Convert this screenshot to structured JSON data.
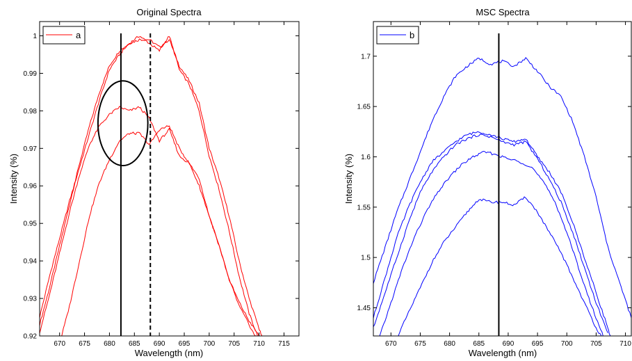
{
  "chart_data": [
    {
      "type": "line",
      "title": "Original Spectra",
      "xlabel": "Wavelength (nm)",
      "ylabel": "Intensity (%)",
      "xlim": [
        666,
        718
      ],
      "ylim": [
        0.92,
        1.0038
      ],
      "xticks": [
        "670",
        "675",
        "680",
        "685",
        "690",
        "695",
        "700",
        "705",
        "710",
        "715"
      ],
      "yticks": [
        "0.92",
        "0.93",
        "0.94",
        "0.95",
        "0.96",
        "0.97",
        "0.98",
        "0.99",
        "1"
      ],
      "legend": {
        "position": "top-left",
        "entries": [
          {
            "label": "a",
            "color": "#ff0000"
          }
        ]
      },
      "grid": false,
      "line_color": "#ff0000",
      "series": [
        {
          "x": [
            666,
            668,
            670,
            672,
            674,
            676,
            678,
            680,
            682,
            684,
            686,
            688,
            690,
            692,
            694,
            696,
            698,
            700,
            702,
            704,
            706,
            708,
            710,
            711
          ],
          "values": [
            0.923,
            0.933,
            0.944,
            0.955,
            0.966,
            0.976,
            0.985,
            0.992,
            0.996,
            0.998,
            0.999,
            0.999,
            0.997,
            0.999,
            0.992,
            0.988,
            0.982,
            0.97,
            0.962,
            0.952,
            0.94,
            0.93,
            0.922,
            0.918
          ]
        },
        {
          "x": [
            666,
            668,
            670,
            672,
            674,
            676,
            678,
            680,
            682,
            684,
            686,
            688,
            690,
            692,
            694,
            696,
            698,
            700,
            702,
            704,
            706,
            708,
            710,
            711
          ],
          "values": [
            0.925,
            0.936,
            0.946,
            0.956,
            0.965,
            0.974,
            0.983,
            0.991,
            0.995,
            0.998,
            1.0,
            0.998,
            0.996,
            1.0,
            0.991,
            0.987,
            0.98,
            0.968,
            0.959,
            0.948,
            0.936,
            0.926,
            0.919,
            0.915
          ]
        },
        {
          "x": [
            666,
            668,
            670,
            672,
            674,
            676,
            678,
            680,
            682,
            684,
            686,
            688,
            690,
            692,
            694,
            696,
            698,
            700,
            702,
            704,
            706,
            708,
            710,
            711
          ],
          "values": [
            0.921,
            0.931,
            0.942,
            0.953,
            0.963,
            0.971,
            0.976,
            0.979,
            0.981,
            0.98,
            0.981,
            0.978,
            0.972,
            0.975,
            0.968,
            0.966,
            0.962,
            0.952,
            0.944,
            0.935,
            0.929,
            0.924,
            0.92,
            0.918
          ]
        },
        {
          "x": [
            670,
            672,
            674,
            676,
            678,
            680,
            682,
            684,
            686,
            688,
            690,
            692,
            694,
            696,
            698,
            700,
            702,
            704,
            706,
            708,
            710
          ],
          "values": [
            0.918,
            0.928,
            0.94,
            0.952,
            0.961,
            0.967,
            0.972,
            0.974,
            0.974,
            0.971,
            0.975,
            0.976,
            0.97,
            0.966,
            0.96,
            0.952,
            0.944,
            0.935,
            0.928,
            0.923,
            0.918
          ]
        }
      ],
      "annotations": [
        {
          "type": "vertical-line",
          "x": 682.3,
          "style": "solid"
        },
        {
          "type": "vertical-line",
          "x": 688.2,
          "style": "dashed"
        },
        {
          "type": "circle",
          "cx": 682.7,
          "cy": 0.9767,
          "rx": 5,
          "ry": 0.0113
        }
      ]
    },
    {
      "type": "line",
      "title": "MSC Spectra",
      "xlabel": "Wavelength (nm)",
      "ylabel": "Intensity (%)",
      "xlim": [
        667,
        711
      ],
      "ylim": [
        1.422,
        1.7344
      ],
      "xticks": [
        "670",
        "675",
        "680",
        "685",
        "690",
        "695",
        "700",
        "705",
        "710"
      ],
      "yticks": [
        "1.45",
        "1.5",
        "1.55",
        "1.6",
        "1.65",
        "1.7"
      ],
      "legend": {
        "position": "top-left",
        "entries": [
          {
            "label": "b",
            "color": "#0000ff"
          }
        ]
      },
      "grid": false,
      "line_color": "#0000ff",
      "series": [
        {
          "x": [
            667,
            669,
            671,
            673,
            675,
            677,
            679,
            681,
            683,
            685,
            687,
            689,
            691,
            693,
            695,
            697,
            699,
            701,
            703,
            705,
            707,
            709,
            711
          ],
          "values": [
            1.475,
            1.51,
            1.545,
            1.575,
            1.605,
            1.635,
            1.66,
            1.68,
            1.69,
            1.698,
            1.692,
            1.695,
            1.69,
            1.698,
            1.685,
            1.67,
            1.66,
            1.635,
            1.6,
            1.56,
            1.51,
            1.475,
            1.44
          ]
        },
        {
          "x": [
            667,
            669,
            671,
            673,
            675,
            677,
            679,
            681,
            683,
            685,
            687,
            689,
            691,
            693,
            695,
            697,
            699,
            701,
            703,
            705,
            707,
            708
          ],
          "values": [
            1.44,
            1.48,
            1.52,
            1.55,
            1.575,
            1.595,
            1.605,
            1.615,
            1.622,
            1.625,
            1.622,
            1.618,
            1.615,
            1.618,
            1.6,
            1.585,
            1.565,
            1.535,
            1.5,
            1.465,
            1.43,
            1.41
          ]
        },
        {
          "x": [
            667,
            669,
            671,
            673,
            675,
            677,
            679,
            681,
            683,
            685,
            687,
            689,
            691,
            693,
            695,
            697,
            699,
            701,
            703,
            705,
            707
          ],
          "values": [
            1.43,
            1.465,
            1.5,
            1.535,
            1.565,
            1.585,
            1.6,
            1.612,
            1.618,
            1.622,
            1.62,
            1.615,
            1.612,
            1.615,
            1.598,
            1.578,
            1.555,
            1.525,
            1.49,
            1.455,
            1.425
          ]
        },
        {
          "x": [
            668,
            670,
            672,
            674,
            676,
            678,
            680,
            682,
            684,
            686,
            688,
            690,
            692,
            694,
            696,
            698,
            700,
            702,
            704,
            706,
            707
          ],
          "values": [
            1.42,
            1.455,
            1.49,
            1.52,
            1.545,
            1.565,
            1.58,
            1.592,
            1.6,
            1.605,
            1.602,
            1.598,
            1.595,
            1.59,
            1.575,
            1.555,
            1.525,
            1.49,
            1.455,
            1.425,
            1.41
          ]
        },
        {
          "x": [
            671,
            673,
            675,
            677,
            679,
            681,
            683,
            685,
            687,
            689,
            691,
            693,
            695,
            697,
            699,
            701,
            703,
            705,
            706
          ],
          "values": [
            1.42,
            1.445,
            1.47,
            1.495,
            1.515,
            1.53,
            1.545,
            1.558,
            1.555,
            1.555,
            1.552,
            1.56,
            1.545,
            1.525,
            1.505,
            1.48,
            1.455,
            1.43,
            1.42
          ]
        }
      ],
      "annotations": [
        {
          "type": "vertical-line",
          "x": 688.4,
          "style": "solid"
        }
      ]
    }
  ]
}
